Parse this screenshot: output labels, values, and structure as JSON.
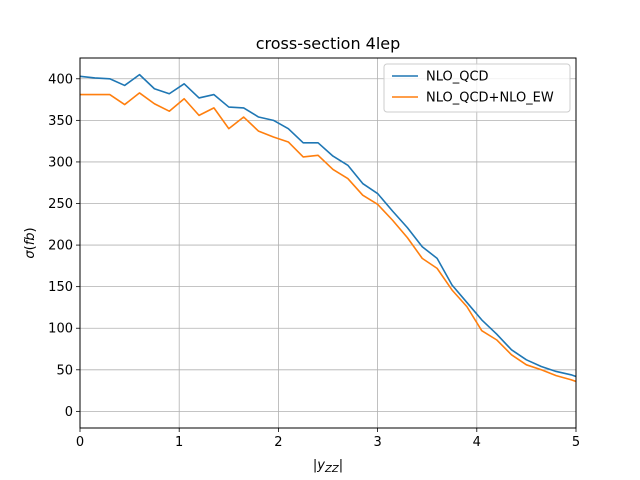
{
  "chart_data": {
    "type": "line",
    "title": "cross-section 4lep",
    "xlabel": "|y_zz|",
    "ylabel": "σ(fb)",
    "xlim": [
      0,
      5
    ],
    "ylim": [
      -20,
      425
    ],
    "xticks": [
      0,
      1,
      2,
      3,
      4,
      5
    ],
    "yticks": [
      0,
      50,
      100,
      150,
      200,
      250,
      300,
      350,
      400
    ],
    "grid": true,
    "legend_position": "top-right",
    "x": [
      0.0,
      0.15,
      0.3,
      0.45,
      0.6,
      0.75,
      0.9,
      1.05,
      1.2,
      1.35,
      1.5,
      1.65,
      1.8,
      1.95,
      2.1,
      2.25,
      2.4,
      2.55,
      2.7,
      2.85,
      3.0,
      3.15,
      3.3,
      3.45,
      3.6,
      3.75,
      3.9,
      4.05,
      4.2,
      4.35,
      4.5,
      4.65,
      4.8,
      4.95,
      5.0
    ],
    "series": [
      {
        "name": "NLO_QCD",
        "color": "#1f77b4",
        "values": [
          403,
          401,
          400,
          392,
          405,
          388,
          382,
          394,
          377,
          381,
          366,
          365,
          354,
          350,
          340,
          323,
          323,
          307,
          296,
          274,
          262,
          241,
          221,
          198,
          184,
          152,
          131,
          110,
          93,
          74,
          62,
          54,
          48,
          44,
          42
        ]
      },
      {
        "name": "NLO_QCD+NLO_EW",
        "color": "#ff7f0e",
        "values": [
          381,
          381,
          381,
          369,
          383,
          370,
          361,
          376,
          356,
          365,
          340,
          354,
          337,
          330,
          324,
          306,
          308,
          291,
          280,
          260,
          249,
          230,
          209,
          184,
          172,
          146,
          126,
          97,
          86,
          68,
          56,
          50,
          43,
          38,
          36
        ]
      }
    ]
  }
}
